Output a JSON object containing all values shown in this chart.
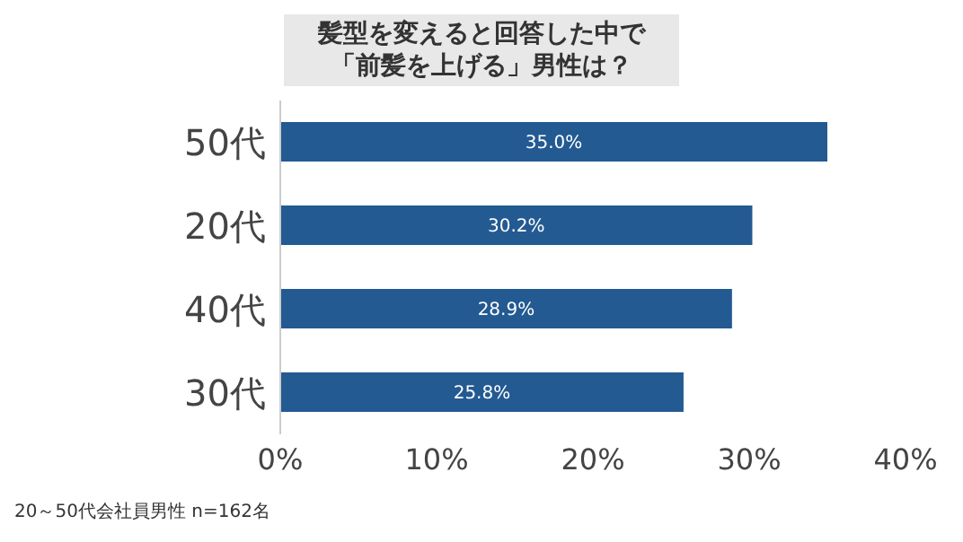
{
  "chart_data": {
    "type": "bar",
    "orientation": "horizontal",
    "title": "髪型を変えると回答した中で",
    "subtitle": "「前髪を上げる」男性は？",
    "categories": [
      "50代",
      "20代",
      "40代",
      "30代"
    ],
    "values": [
      35.0,
      30.2,
      28.9,
      25.8
    ],
    "value_labels": [
      "35.0%",
      "30.2%",
      "28.9%",
      "25.8%"
    ],
    "color": "#235a92",
    "xlim": [
      0,
      40
    ],
    "xticks": [
      {
        "value": 0,
        "label": "0%"
      },
      {
        "value": 10,
        "label": "10%"
      },
      {
        "value": 20,
        "label": "20%"
      },
      {
        "value": 30,
        "label": "30%"
      },
      {
        "value": 40,
        "label": "40%"
      }
    ],
    "annotations": [
      "20～50代会社員男性 n=162名"
    ]
  }
}
